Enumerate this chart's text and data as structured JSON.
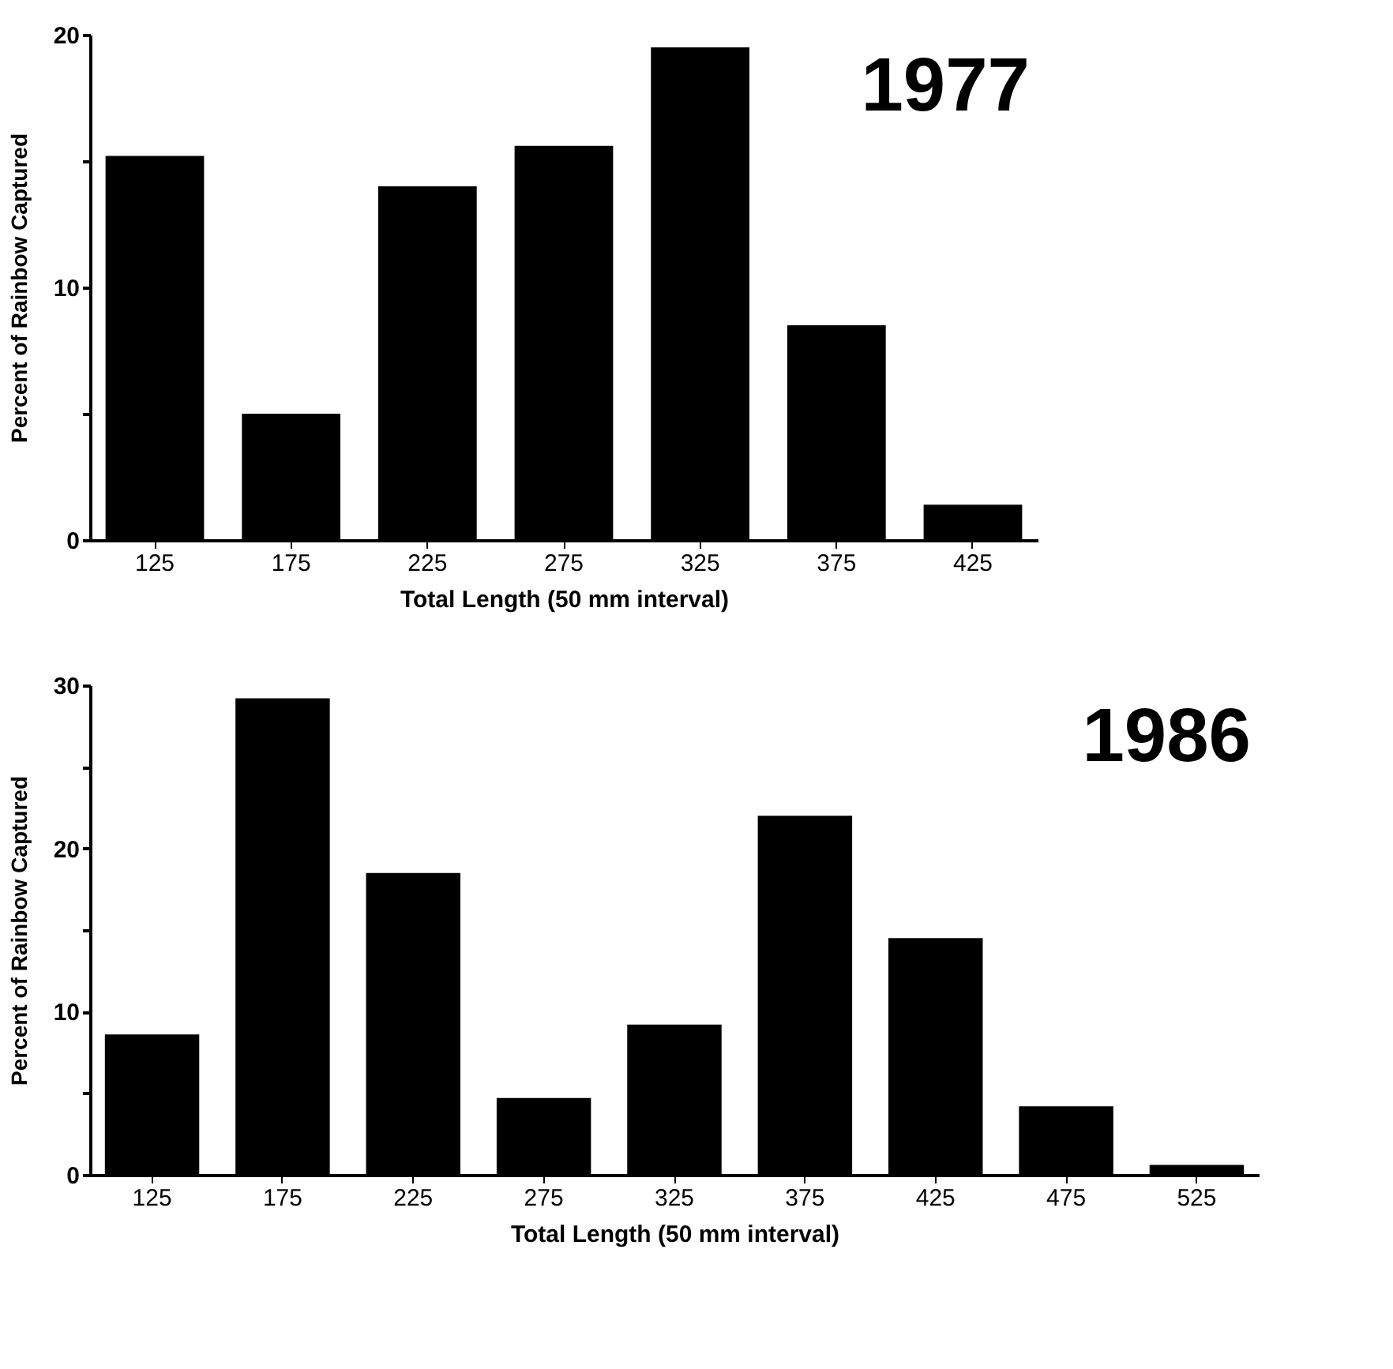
{
  "chart_data": [
    {
      "type": "bar",
      "title": "1977",
      "xlabel": "Total Length  (50 mm interval)",
      "ylabel": "Percent of Rainbow Captured",
      "categories": [
        "125",
        "175",
        "225",
        "275",
        "325",
        "375",
        "425"
      ],
      "values": [
        15.2,
        5.0,
        14.0,
        15.6,
        19.5,
        8.5,
        1.4
      ],
      "color": "#000000",
      "ylim": [
        0,
        20
      ],
      "yticks": [
        0,
        {
          "value": 5,
          "label": null
        },
        10,
        {
          "value": 15,
          "label": null
        },
        20
      ],
      "grid": false
    },
    {
      "type": "bar",
      "title": "1986",
      "xlabel": "Total Length (50 mm interval)",
      "ylabel": "Percent of Rainbow Captured",
      "categories": [
        "125",
        "175",
        "225",
        "275",
        "325",
        "375",
        "425",
        "475",
        "525"
      ],
      "values": [
        8.6,
        29.2,
        18.5,
        4.7,
        9.2,
        22.0,
        14.5,
        4.2,
        0.6
      ],
      "color": "#000000",
      "ylim": [
        0,
        30
      ],
      "yticks": [
        0,
        {
          "value": 5,
          "label": null
        },
        10,
        {
          "value": 15,
          "label": null
        },
        20,
        {
          "value": 25,
          "label": null
        },
        30
      ],
      "grid": false
    }
  ]
}
